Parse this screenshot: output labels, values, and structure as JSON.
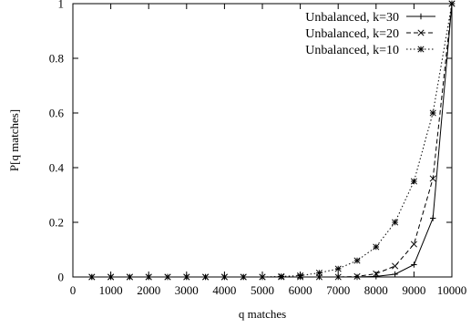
{
  "chart_data": {
    "type": "line",
    "xlabel": "q matches",
    "ylabel": "P[q matches]",
    "xlim": [
      0,
      10000
    ],
    "ylim": [
      0,
      1
    ],
    "x_ticks": [
      0,
      1000,
      2000,
      3000,
      4000,
      5000,
      6000,
      7000,
      8000,
      9000,
      10000
    ],
    "y_ticks": [
      0,
      0.2,
      0.4,
      0.6,
      0.8,
      1
    ],
    "x_tick_labels": [
      "0",
      "1000",
      "2000",
      "3000",
      "4000",
      "5000",
      "6000",
      "7000",
      "8000",
      "9000",
      "10000"
    ],
    "y_tick_labels": [
      "0",
      "0.2",
      "0.4",
      "0.6",
      "0.8",
      "1"
    ],
    "grid": false,
    "legend_position": "top-right",
    "x": [
      500,
      1000,
      1500,
      2000,
      2500,
      3000,
      3500,
      4000,
      4500,
      5000,
      5500,
      6000,
      6500,
      7000,
      7500,
      8000,
      8500,
      9000,
      9500,
      10000
    ],
    "series": [
      {
        "name": "Unbalanced, k=30",
        "line_style": "solid",
        "marker": "plus",
        "values": [
          0,
          0,
          0,
          0,
          0,
          0,
          0,
          0,
          0,
          0,
          0,
          0,
          0,
          0,
          0,
          0.002,
          0.01,
          0.045,
          0.215,
          1.0
        ]
      },
      {
        "name": "Unbalanced, k=20",
        "line_style": "dashed",
        "marker": "x",
        "values": [
          0,
          0,
          0,
          0,
          0,
          0,
          0,
          0,
          0,
          0,
          0,
          0,
          0,
          0,
          0.002,
          0.012,
          0.04,
          0.12,
          0.36,
          1.0
        ]
      },
      {
        "name": "Unbalanced, k=10",
        "line_style": "dotted",
        "marker": "star",
        "values": [
          0,
          0,
          0,
          0,
          0,
          0,
          0,
          0,
          0,
          0,
          0.002,
          0.005,
          0.015,
          0.03,
          0.06,
          0.11,
          0.2,
          0.35,
          0.6,
          1.0
        ]
      }
    ]
  }
}
